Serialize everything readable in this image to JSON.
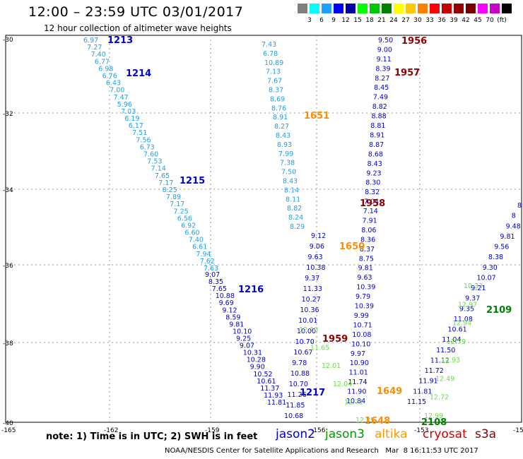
{
  "title": "12:00 – 23:59 UTC 03/01/2017",
  "subtitle": "12 hour collection of altimeter wave heights",
  "color_scale": {
    "colors": [
      "#808080",
      "#00ffff",
      "#1ea0ff",
      "#0000ff",
      "#0000aa",
      "#00ff00",
      "#00c800",
      "#008000",
      "#ffff00",
      "#ffc800",
      "#ff8000",
      "#ff0000",
      "#c80000",
      "#960000",
      "#780000",
      "#ff00ff",
      "#c800c8",
      "#000000"
    ],
    "labels": [
      "3",
      "6",
      "9",
      "12",
      "15",
      "18",
      "21",
      "24",
      "27",
      "30",
      "33",
      "36",
      "39",
      "42",
      "45",
      "70",
      "(ft)"
    ]
  },
  "axes": {
    "lat_labels": [
      "-30",
      "-32",
      "-34",
      "-36",
      "-38",
      "-40"
    ],
    "lon_labels": [
      "-165",
      "-162",
      "-159",
      "-156",
      "-153",
      "-15"
    ]
  },
  "passes": {
    "p1": {
      "sensor": "jason2",
      "color": "#1ea0e6",
      "label": "1213",
      "label_color": "#0000cc",
      "values": [
        "6.97",
        "7.27",
        "7.40",
        "6.77",
        "6.98",
        "6.76",
        "6.43",
        "7.00",
        "7.47",
        "5.96",
        "7.03",
        "6.19",
        "6.17",
        "7.51",
        "7.56",
        "6.73",
        "7.60",
        "7.53",
        "7.14",
        "7.65",
        "7.17",
        "8.25",
        "7.89",
        "7.17",
        "7.25",
        "6.56",
        "6.92",
        "6.60",
        "7.40",
        "6.61",
        "7.94",
        "7.62",
        "7.63"
      ]
    },
    "p1b": {
      "sensor": "jason2",
      "color": "#0000cc",
      "values": [
        "9.07",
        "8.35",
        "7.65",
        "10.88",
        "9.69",
        "9.12",
        "8.59",
        "9.81",
        "10.10",
        "9.25",
        "9.07",
        "10.31",
        "10.28",
        "9.90",
        "10.52",
        "10.61",
        "11.37",
        "11.93",
        "11.81"
      ]
    },
    "p2": {
      "sensor": "jason2",
      "color": "#1ea0e6",
      "values": [
        "7.43",
        "6.78",
        "10.89",
        "7.13",
        "7.67",
        "8.37",
        "8.69",
        "8.76",
        "8.91",
        "8.27",
        "8.43",
        "8.93",
        "7.99",
        "7.38",
        "7.50",
        "8.43",
        "8.14",
        "8.11",
        "8.82",
        "8.24",
        "8.29"
      ]
    },
    "p2b": {
      "sensor": "jason2",
      "color": "#0000cc",
      "values": [
        "9.12",
        "9.06",
        "9.63",
        "10.38",
        "9.37",
        "11.33",
        "10.27",
        "10.36",
        "10.01",
        "10.00",
        "10.70",
        "10.67",
        "9.78",
        "10.88",
        "10.70",
        "11.26",
        "11.85",
        "10.68"
      ]
    },
    "p3": {
      "sensor": "jason2",
      "color": "#0000cc",
      "values": [
        "9.50",
        "9.00",
        "9.11",
        "8.39",
        "8.27",
        "8.45",
        "7.49",
        "8.82",
        "8.88",
        "8.81",
        "8.91",
        "8.87",
        "8.68",
        "8.43",
        "9.23",
        "8.30",
        "8.32",
        "7.04",
        "7.14",
        "7.91",
        "8.06",
        "8.36",
        "8.37",
        "8.75",
        "9.81",
        "9.63",
        "10.39",
        "9.79",
        "10.39",
        "9.99",
        "10.71",
        "10.08",
        "10.10",
        "9.97",
        "10.90",
        "11.01",
        "11.74",
        "11.90",
        "10.84"
      ]
    },
    "p4": {
      "sensor": "jason2",
      "color": "#0000cc",
      "values": [
        "8",
        "8",
        "9.48",
        "9.81",
        "9.56",
        "8.38",
        "9.30",
        "10.07",
        "9.21",
        "9.37",
        "9.35",
        "11.08",
        "10.61",
        "11.04",
        "11.50",
        "11.12",
        "11.72",
        "11.91",
        "11.81",
        "11.15"
      ]
    },
    "p4g": {
      "sensor": "jason3",
      "color": "#66dd44",
      "values": [
        "10.33",
        "12.97",
        "12.94",
        "12.79",
        "12.93",
        "12.49",
        "12.72",
        "12.99"
      ]
    },
    "p3g": {
      "sensor": "jason3",
      "color": "#66dd44",
      "values": [
        "12.10",
        "11.65",
        "12.01",
        "12.04",
        "12.71",
        "12.05"
      ]
    },
    "time_labels": [
      {
        "t": "1213",
        "color": "#0000cc"
      },
      {
        "t": "1214",
        "color": "#0000cc"
      },
      {
        "t": "1215",
        "color": "#0000cc"
      },
      {
        "t": "1216",
        "color": "#0000cc"
      },
      {
        "t": "1217",
        "color": "#0000cc"
      },
      {
        "t": "1956",
        "color": "#8b0000"
      },
      {
        "t": "1957",
        "color": "#8b0000"
      },
      {
        "t": "1958",
        "color": "#8b0000"
      },
      {
        "t": "1959",
        "color": "#8b0000"
      },
      {
        "t": "1651",
        "color": "#ff8c00"
      },
      {
        "t": "1650",
        "color": "#ff8c00"
      },
      {
        "t": "1649",
        "color": "#ff8c00"
      },
      {
        "t": "1648",
        "color": "#ff8c00"
      },
      {
        "t": "2109",
        "color": "#008000"
      },
      {
        "t": "2108",
        "color": "#008000"
      }
    ]
  },
  "footer": {
    "note": "note: 1) Time is in UTC; 2) SWH is in feet",
    "legend": [
      {
        "name": "jason2",
        "color": "#0000cc"
      },
      {
        "name": "jason3",
        "color": "#009900"
      },
      {
        "name": "altika",
        "color": "#ff9900"
      },
      {
        "name": "cryosat",
        "color": "#cc0000"
      },
      {
        "name": "s3a",
        "color": "#880000"
      }
    ],
    "credit": "NOAA/NESDIS Center for Satellite Applications and Research   Mar  8 16:11:53 UTC 2017"
  }
}
